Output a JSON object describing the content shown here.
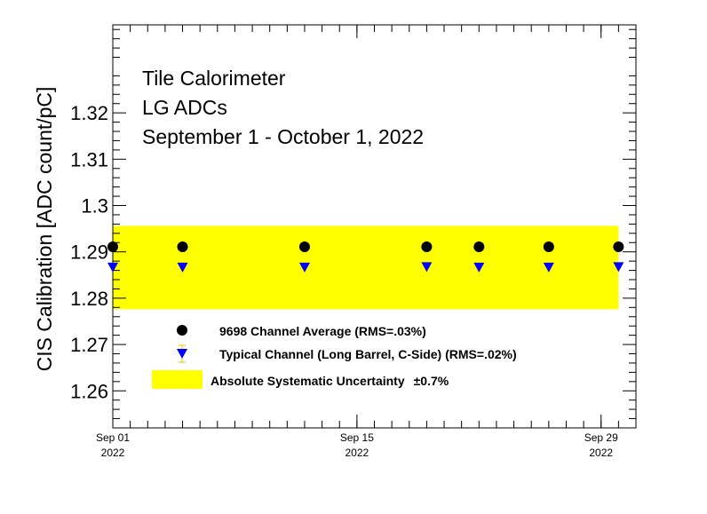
{
  "chart_data": {
    "type": "scatter",
    "title_lines": [
      "Tile Calorimeter",
      "LG ADCs",
      "September 1 - October 1, 2022"
    ],
    "xlabel": "",
    "ylabel": "CIS Calibration [ADC count/pC]",
    "x_axis_type": "date",
    "xlim": [
      "2022-09-01",
      "2022-10-01"
    ],
    "ylim": [
      1.252,
      1.339
    ],
    "yticks": [
      1.26,
      1.27,
      1.28,
      1.29,
      1.3,
      1.31,
      1.32
    ],
    "ytick_labels": [
      "1.26",
      "1.27",
      "1.28",
      "1.29",
      "1.3",
      "1.31",
      "1.32"
    ],
    "xticks": [
      {
        "date": "2022-09-01",
        "line1": "Sep 01",
        "line2": "2022"
      },
      {
        "date": "2022-09-15",
        "line1": "Sep 15",
        "line2": "2022"
      },
      {
        "date": "2022-09-29",
        "line1": "Sep 29",
        "line2": "2022"
      }
    ],
    "grid": false,
    "legend_position": "bottom-center",
    "band": {
      "name": "Absolute Systematic Uncertainty",
      "name_suffix": "±0.7%",
      "color": "#ffff00",
      "x_range": [
        "2022-09-01",
        "2022-09-30"
      ],
      "y_range": [
        1.2776,
        1.2956
      ]
    },
    "series": [
      {
        "name": "9698 Channel Average (RMS=.03%)",
        "marker": "circle",
        "color": "#000000",
        "points": [
          {
            "x": "2022-09-01",
            "y": 1.2911
          },
          {
            "x": "2022-09-05",
            "y": 1.2911
          },
          {
            "x": "2022-09-12",
            "y": 1.2911
          },
          {
            "x": "2022-09-19",
            "y": 1.2911
          },
          {
            "x": "2022-09-22",
            "y": 1.2911
          },
          {
            "x": "2022-09-26",
            "y": 1.2911
          },
          {
            "x": "2022-09-30",
            "y": 1.2911
          }
        ]
      },
      {
        "name": "Typical Channel (Long Barrel, C-Side) (RMS=.02%)",
        "marker": "triangle-down",
        "color": "#0000ff",
        "error_color": "#e8c800",
        "points": [
          {
            "x": "2022-09-01",
            "y": 1.2867
          },
          {
            "x": "2022-09-05",
            "y": 1.2867
          },
          {
            "x": "2022-09-12",
            "y": 1.2867
          },
          {
            "x": "2022-09-19",
            "y": 1.2868
          },
          {
            "x": "2022-09-22",
            "y": 1.2867
          },
          {
            "x": "2022-09-26",
            "y": 1.2867
          },
          {
            "x": "2022-09-30",
            "y": 1.2868
          }
        ]
      }
    ]
  }
}
